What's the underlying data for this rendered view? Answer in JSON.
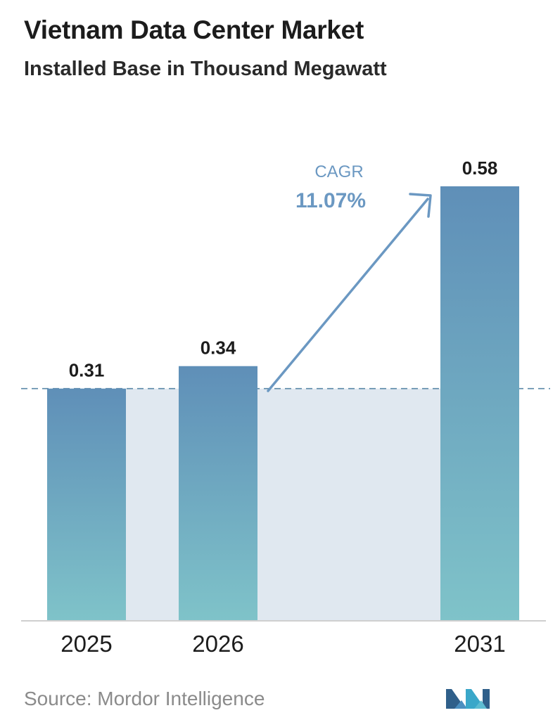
{
  "header": {
    "title": "Vietnam Data Center Market",
    "subtitle": "Installed Base in Thousand Megawatt"
  },
  "footer": {
    "source": "Source:  Mordor Intelligence",
    "logo_icon": "mordor-intelligence-logo-icon"
  },
  "colors": {
    "bar_top": "#5f8fb8",
    "bar_bottom": "#7fc3c9",
    "band": "#e0e8f0",
    "reference_line": "#5a88a8",
    "cagr_text": "#6b98c2",
    "arrow": "#6b98c2",
    "axis": "#cfcfcf"
  },
  "chart_data": {
    "type": "bar",
    "categories": [
      "2025",
      "2026",
      "2031"
    ],
    "values": [
      0.31,
      0.34,
      0.58
    ],
    "data_labels": [
      "0.31",
      "0.34",
      "0.58"
    ],
    "title": "Vietnam Data Center Market",
    "subtitle": "Installed Base in Thousand Megawatt",
    "xlabel": "",
    "ylabel": "",
    "ylim": [
      0,
      0.58
    ],
    "grid": false,
    "legend": "none",
    "reference_line_value": 0.31,
    "annotation": {
      "label": "CAGR",
      "value": "11.07%"
    }
  }
}
